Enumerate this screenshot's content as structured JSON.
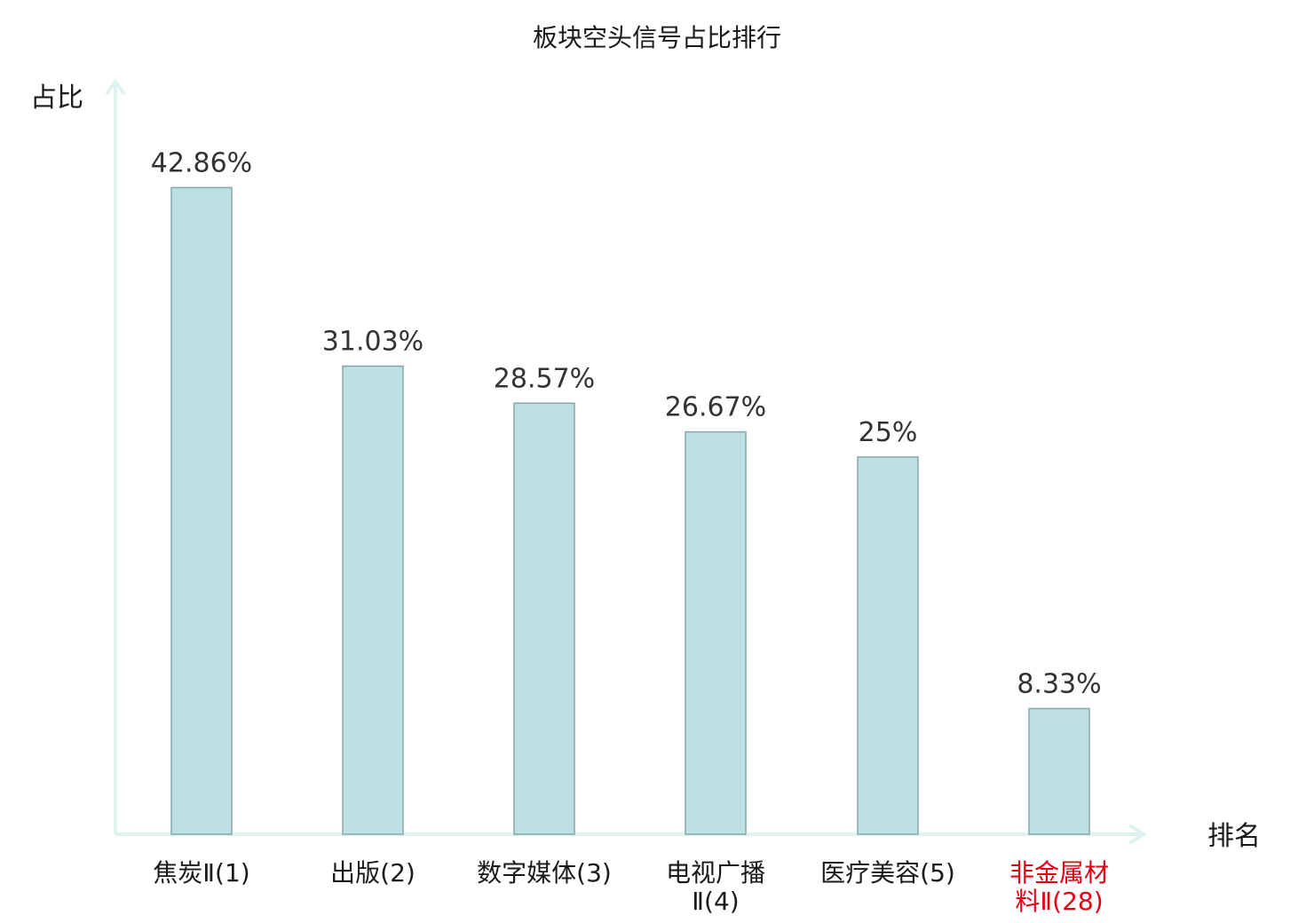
{
  "chart_data": {
    "type": "bar",
    "title": "板块空头信号占比排行",
    "ylabel": "占比",
    "xlabel": "排名",
    "categories": [
      [
        "焦炭Ⅱ(1)"
      ],
      [
        "出版(2)"
      ],
      [
        "数字媒体(3)"
      ],
      [
        "电视广播",
        "Ⅱ(4)"
      ],
      [
        "医疗美容(5)"
      ],
      [
        "非金属材",
        "料Ⅱ(28)"
      ]
    ],
    "values": [
      42.86,
      31.03,
      28.57,
      26.67,
      25,
      8.33
    ],
    "value_labels": [
      "42.86%",
      "31.03%",
      "28.57%",
      "26.67%",
      "25%",
      "8.33%"
    ],
    "category_colors": [
      "#1a1a1a",
      "#1a1a1a",
      "#1a1a1a",
      "#1a1a1a",
      "#1a1a1a",
      "#e60012"
    ],
    "ylim": [
      0,
      50
    ],
    "bar_fill": "#bde0e3",
    "bar_stroke": "#86a8aa",
    "axis_color": "#dff2ef",
    "grid": false,
    "legend": "none"
  }
}
